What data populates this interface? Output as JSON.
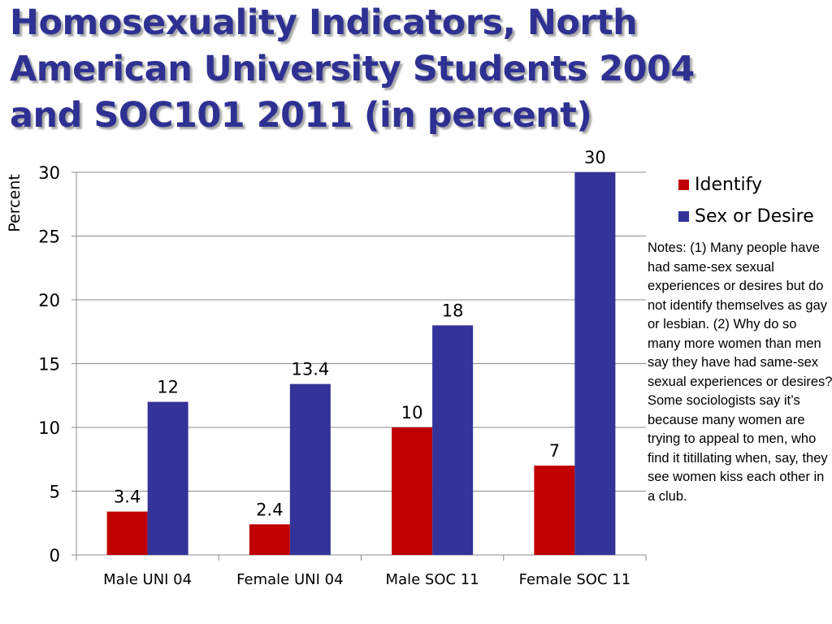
{
  "title": {
    "lines": [
      "Homosexuality Indicators, North",
      "American University Students 2004",
      "and SOC101 2011 (in percent)"
    ]
  },
  "notes": "Notes: (1) Many people have had same-sex sexual experiences or desires but do not identify themselves as gay or lesbian. (2) Why do so many more women than men say they have had same-sex sexual experiences or desires? Some sociologists say it’s because many women are trying to appeal to men, who find it titillating when, say, they see women kiss each other in a club.",
  "chart_data": {
    "type": "bar",
    "ylabel": "Percent",
    "xlabel": "",
    "ylim": [
      0,
      30
    ],
    "yticks": [
      0,
      5,
      10,
      15,
      20,
      25,
      30
    ],
    "grid": true,
    "legend_position": "right",
    "categories": [
      "Male UNI 04",
      "Female UNI 04",
      "Male SOC 11",
      "Female SOC 11"
    ],
    "series": [
      {
        "name": "Identify",
        "color": "#c00000",
        "values": [
          3.4,
          2.4,
          10,
          7
        ],
        "labels": [
          "3.4",
          "2.4",
          "10",
          "7"
        ]
      },
      {
        "name": "Sex or Desire",
        "color": "#333399",
        "values": [
          12,
          13.4,
          18,
          30
        ],
        "labels": [
          "12",
          "13.4",
          "18",
          "30"
        ]
      }
    ]
  }
}
